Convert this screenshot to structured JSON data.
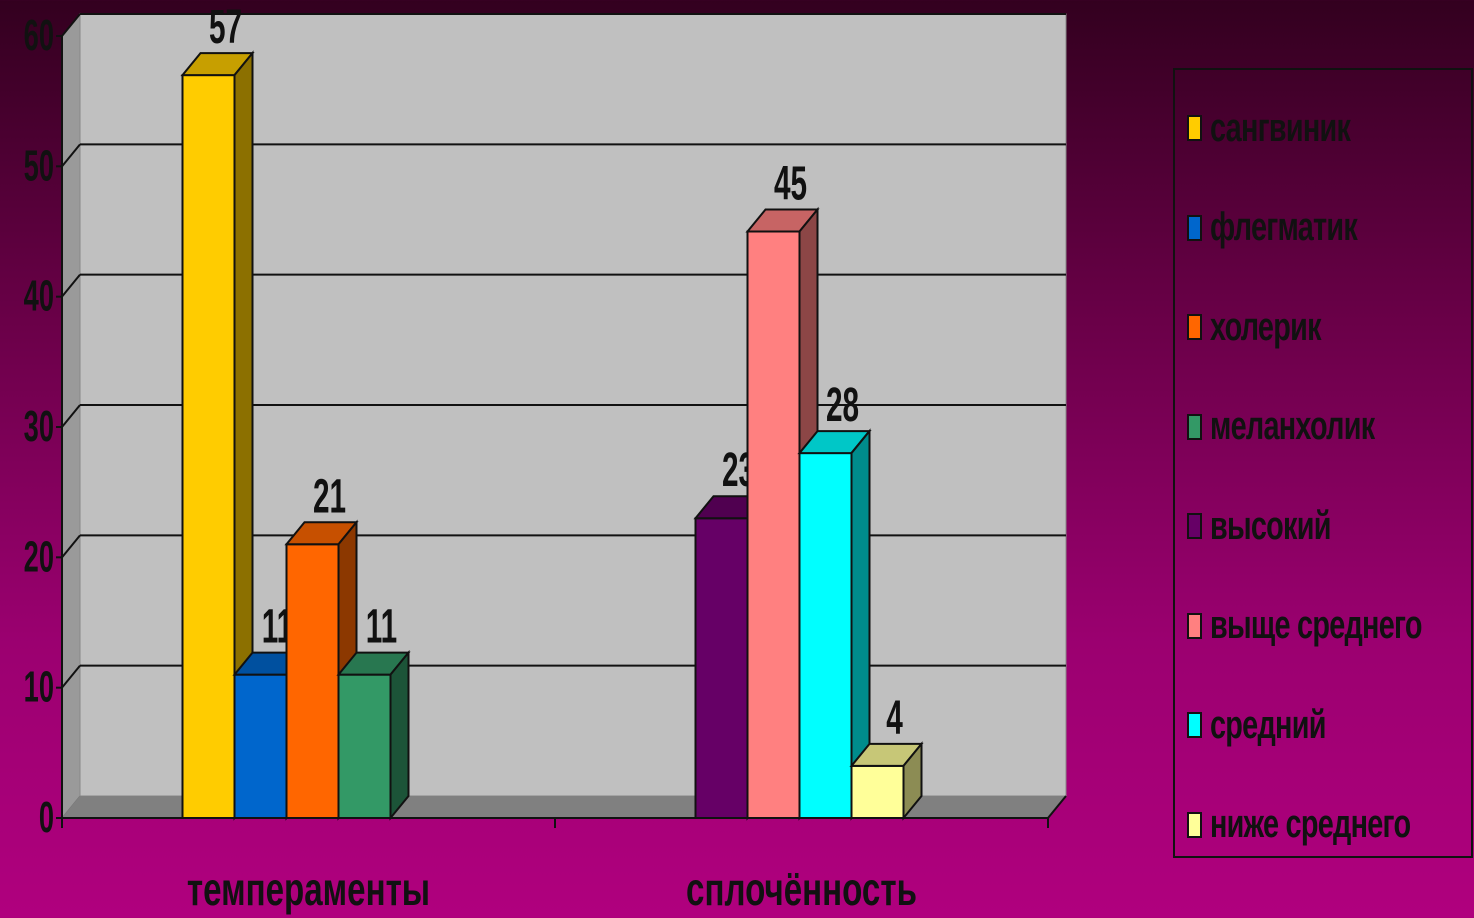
{
  "chart_data": {
    "type": "bar",
    "categories": [
      "темпераменты",
      "сплочённость"
    ],
    "ylim": [
      0,
      60
    ],
    "yticks": [
      0,
      10,
      20,
      30,
      40,
      50,
      60
    ],
    "grid": true,
    "legend_position": "right",
    "series": [
      {
        "name": "сангвиник",
        "color": "#ffcc00",
        "values": [
          57,
          null
        ]
      },
      {
        "name": "флегматик",
        "color": "#0066cc",
        "values": [
          11,
          null
        ]
      },
      {
        "name": "холерик",
        "color": "#ff6600",
        "values": [
          21,
          null
        ]
      },
      {
        "name": "меланхолик",
        "color": "#339966",
        "values": [
          11,
          null
        ]
      },
      {
        "name": "высокий",
        "color": "#660066",
        "values": [
          null,
          23
        ]
      },
      {
        "name": "выще среднего",
        "color": "#ff8080",
        "values": [
          null,
          45
        ]
      },
      {
        "name": "средний",
        "color": "#00ffff",
        "values": [
          null,
          28
        ]
      },
      {
        "name": "ниже среднего",
        "color": "#ffff99",
        "values": [
          null,
          4
        ]
      }
    ]
  }
}
